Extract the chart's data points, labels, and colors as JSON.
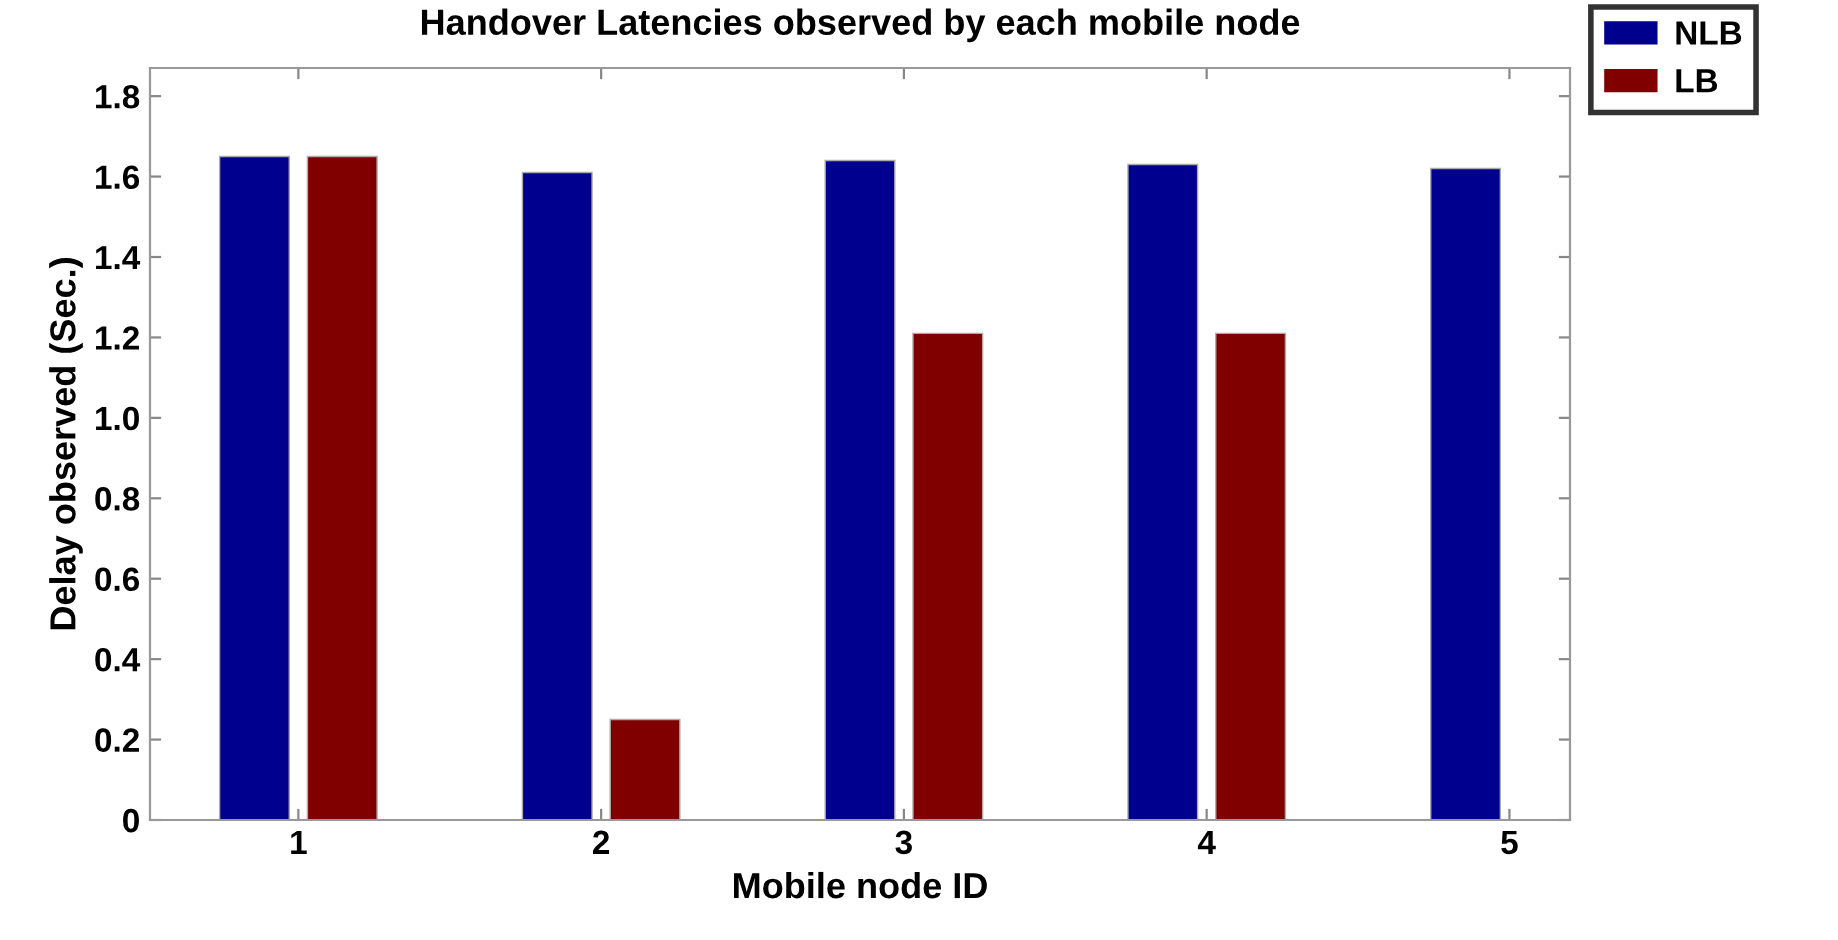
{
  "chart_data": {
    "type": "bar",
    "title": "Handover Latencies observed by each mobile node",
    "xlabel": "Mobile node ID",
    "ylabel": "Delay observed (Sec.)",
    "categories": [
      "1",
      "2",
      "3",
      "4",
      "5"
    ],
    "series": [
      {
        "name": "NLB",
        "color": "#00008f",
        "values": [
          1.65,
          1.61,
          1.64,
          1.63,
          1.62
        ]
      },
      {
        "name": "LB",
        "color": "#800000",
        "values": [
          1.65,
          0.25,
          1.21,
          1.21,
          null
        ]
      }
    ],
    "ylim": [
      0,
      1.87
    ],
    "yticks": [
      {
        "value": 0,
        "label": "0"
      },
      0.2,
      0.4,
      0.6,
      0.8,
      {
        "value": 1.0,
        "label": "1.0"
      },
      1.2,
      1.4,
      1.6,
      1.8
    ],
    "grid": false,
    "legend": "top right"
  }
}
